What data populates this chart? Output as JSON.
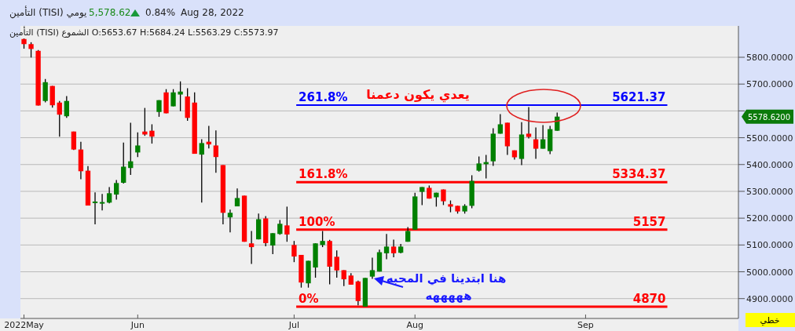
{
  "chart_data": {
    "type": "candlestick",
    "title": "التأمين (TISI)  يومي",
    "subtitle": "التأمين (TISI) الشموع O:5653.67 H:5684.24 L:5563.29 C:5573.97",
    "categories": [
      "2022May",
      null,
      null,
      null,
      null,
      null,
      null,
      null,
      null,
      null,
      null,
      null,
      null,
      null,
      null,
      null,
      "Jun",
      null,
      null,
      null,
      null,
      null,
      null,
      null,
      null,
      null,
      null,
      null,
      null,
      null,
      null,
      null,
      null,
      null,
      null,
      null,
      null,
      null,
      "Jul",
      null,
      null,
      null,
      null,
      null,
      null,
      null,
      null,
      null,
      null,
      null,
      null,
      null,
      null,
      null,
      null,
      "Aug",
      null,
      null,
      null,
      null,
      null,
      null,
      null,
      null,
      null,
      null,
      null,
      null,
      null,
      null,
      null,
      null,
      null,
      null,
      null,
      null,
      null,
      null,
      null,
      "Sep",
      null,
      null,
      null,
      null,
      null,
      null,
      null,
      null,
      null,
      null,
      null,
      null,
      null,
      null,
      null,
      null,
      null,
      null,
      null,
      null,
      null
    ],
    "ohlc": [
      [
        5868,
        5870,
        5832,
        5849
      ],
      [
        5849,
        5856,
        5799,
        5831
      ],
      [
        5824,
        5827,
        5620,
        5620
      ],
      [
        5637,
        5719,
        5632,
        5707
      ],
      [
        5693,
        5693,
        5612,
        5621
      ],
      [
        5631,
        5637,
        5504,
        5586
      ],
      [
        5580,
        5655,
        5574,
        5637
      ],
      [
        5523,
        5523,
        5454,
        5456
      ],
      [
        5456,
        5485,
        5345,
        5375
      ],
      [
        5377,
        5394,
        5247,
        5247
      ],
      [
        5259,
        5296,
        5177,
        5262
      ],
      [
        5257,
        5290,
        5229,
        5260
      ],
      [
        5258,
        5316,
        5255,
        5293
      ],
      [
        5288,
        5342,
        5269,
        5331
      ],
      [
        5332,
        5482,
        5329,
        5392
      ],
      [
        5387,
        5556,
        5361,
        5412
      ],
      [
        5445,
        5520,
        5428,
        5471
      ],
      [
        5523,
        5611,
        5507,
        5512
      ],
      [
        5526,
        5550,
        5478,
        5504
      ],
      [
        5596,
        5640,
        5578,
        5640
      ],
      [
        5669,
        5681,
        5591,
        5591
      ],
      [
        5617,
        5681,
        5617,
        5669
      ],
      [
        5661,
        5710,
        5599,
        5672
      ],
      [
        5653.67,
        5684.24,
        5563.29,
        5573.97
      ],
      [
        5631,
        5669,
        5440,
        5440
      ],
      [
        5437,
        5494,
        5258,
        5480
      ],
      [
        5485,
        5544,
        5460,
        5475
      ],
      [
        5471,
        5527,
        5369,
        5428
      ],
      [
        5398,
        5398,
        5177,
        5220
      ],
      [
        5203,
        5232,
        5147,
        5220
      ],
      [
        5244,
        5311,
        5244,
        5275
      ],
      [
        5284,
        5284,
        5112,
        5112
      ],
      [
        5106,
        5152,
        5029,
        5092
      ],
      [
        5121,
        5217,
        5121,
        5196
      ],
      [
        5199,
        5208,
        5095,
        5107
      ],
      [
        5098,
        5144,
        5066,
        5144
      ],
      [
        5141,
        5193,
        5138,
        5179
      ],
      [
        5173,
        5243,
        5112,
        5139
      ],
      [
        5100,
        5115,
        5036,
        5057
      ],
      [
        5063,
        5063,
        4941,
        4960
      ],
      [
        4957,
        5041,
        4941,
        5041
      ],
      [
        5016,
        5106,
        4978,
        5106
      ],
      [
        5100,
        5152,
        5092,
        5115
      ],
      [
        5115,
        5119,
        4953,
        5019
      ],
      [
        5056,
        5080,
        4978,
        5005
      ],
      [
        5006,
        5006,
        4947,
        4972
      ],
      [
        4986,
        4995,
        4952,
        4952
      ],
      [
        4964,
        4967,
        4875,
        4891
      ],
      [
        4870,
        4977,
        4870,
        4977
      ],
      [
        4982,
        5053,
        4974,
        5006
      ],
      [
        5001,
        5083,
        5001,
        5073
      ],
      [
        5069,
        5141,
        5047,
        5094
      ],
      [
        5094,
        5120,
        5054,
        5069
      ],
      [
        5071,
        5104,
        5069,
        5094
      ],
      [
        5112,
        5167,
        5112,
        5152
      ],
      [
        5157,
        5295,
        5157,
        5281
      ],
      [
        5298,
        5316,
        5249,
        5316
      ],
      [
        5313,
        5322,
        5273,
        5273
      ],
      [
        5278,
        5295,
        5243,
        5295
      ],
      [
        5307,
        5307,
        5249,
        5263
      ],
      [
        5252,
        5266,
        5222,
        5243
      ],
      [
        5246,
        5246,
        5217,
        5225
      ],
      [
        5225,
        5252,
        5217,
        5246
      ],
      [
        5246,
        5360,
        5237,
        5339
      ],
      [
        5377,
        5430,
        5374,
        5404
      ],
      [
        5401,
        5436,
        5348,
        5409
      ],
      [
        5412,
        5535,
        5395,
        5515
      ],
      [
        5515,
        5588,
        5515,
        5550
      ],
      [
        5556,
        5556,
        5436,
        5468
      ],
      [
        5453,
        5453,
        5418,
        5427
      ],
      [
        5421,
        5558,
        5398,
        5512
      ],
      [
        5515,
        5614,
        5497,
        5503
      ],
      [
        5494,
        5538,
        5421,
        5459
      ],
      [
        5459,
        5547,
        5459,
        5494
      ],
      [
        5450,
        5544,
        5439,
        5532
      ],
      [
        5526,
        5594,
        5526,
        5578.62
      ],
      null,
      null,
      null,
      null,
      null,
      null,
      null,
      null,
      null,
      null,
      null,
      null,
      null,
      null,
      null,
      null,
      null,
      null,
      null,
      null,
      null,
      null,
      null,
      null,
      null
    ],
    "colors": [
      "#ff0000",
      "#ff0000",
      "#ff0000",
      "#008000",
      "#ff0000",
      "#ff0000",
      "#008000",
      "#ff0000",
      "#ff0000",
      "#ff0000",
      "#008000",
      "#008000",
      "#008000",
      "#008000",
      "#008000",
      "#008000",
      "#008000",
      "#ff0000",
      "#ff0000",
      "#008000",
      "#ff0000",
      "#008000",
      "#008000",
      "#ff0000",
      "#ff0000",
      "#008000",
      "#ff0000",
      "#ff0000",
      "#ff0000",
      "#008000",
      "#008000",
      "#ff0000",
      "#ff0000",
      "#008000",
      "#ff0000",
      "#008000",
      "#008000",
      "#ff0000",
      "#ff0000",
      "#ff0000",
      "#008000",
      "#008000",
      "#008000",
      "#ff0000",
      "#ff0000",
      "#ff0000",
      "#ff0000",
      "#ff0000",
      "#008000",
      "#008000",
      "#008000",
      "#008000",
      "#ff0000",
      "#008000",
      "#008000",
      "#008000",
      "#008000",
      "#ff0000",
      "#008000",
      "#ff0000",
      "#ff0000",
      "#ff0000",
      "#008000",
      "#008000",
      "#008000",
      "#008000",
      "#008000",
      "#008000",
      "#ff0000",
      "#ff0000",
      "#008000",
      "#ff0000",
      "#ff0000",
      "#008000",
      "#008000",
      "#008000",
      null,
      null,
      null,
      null,
      null,
      null,
      null,
      null,
      null,
      null,
      null,
      null,
      null,
      null,
      null,
      null,
      null,
      null,
      null,
      null,
      null,
      null,
      null,
      null,
      null
    ],
    "ylim": [
      4826,
      5917
    ],
    "yticks": [
      {
        "value": 4900,
        "label": "4900.0000"
      },
      {
        "value": 5000,
        "label": "5000.0000"
      },
      {
        "value": 5100,
        "label": "5100.0000"
      },
      {
        "value": 5200,
        "label": "5200.0000"
      },
      {
        "value": 5300,
        "label": "5300.0000"
      },
      {
        "value": 5400,
        "label": "5400.0000"
      },
      {
        "value": 5500,
        "label": "5500.0000"
      },
      {
        "value": 5600,
        "label": null
      },
      {
        "value": 5700,
        "label": "5700.0000"
      },
      {
        "value": 5800,
        "label": "5800.0000"
      }
    ],
    "grid": "y",
    "ref_lines": [
      {
        "axis": "y",
        "value": 5621.37,
        "label": "5621.37",
        "color": "#0000ff"
      },
      {
        "axis": "y",
        "value": 5334.37,
        "label": "5334.37",
        "color": "#ff0000"
      },
      {
        "axis": "y",
        "value": 5157,
        "label": "5157",
        "color": "#ff0000"
      },
      {
        "axis": "y",
        "value": 4870,
        "label": "4870",
        "color": "#ff0000"
      }
    ],
    "annotations": [
      {
        "text": "261.8%",
        "y": 5621.37
      },
      {
        "text": "161.8%",
        "y": 5334.37
      },
      {
        "text": "100%",
        "y": 5157
      },
      {
        "text": "0%",
        "y": 4870
      },
      "5,578.62",
      "0.84%",
      "Aug 28, 2022",
      "يعدي يكون دعمنا",
      "هنا ابتدينا في المحبه",
      "هههههه",
      "5578.6200",
      "خطي"
    ]
  }
}
